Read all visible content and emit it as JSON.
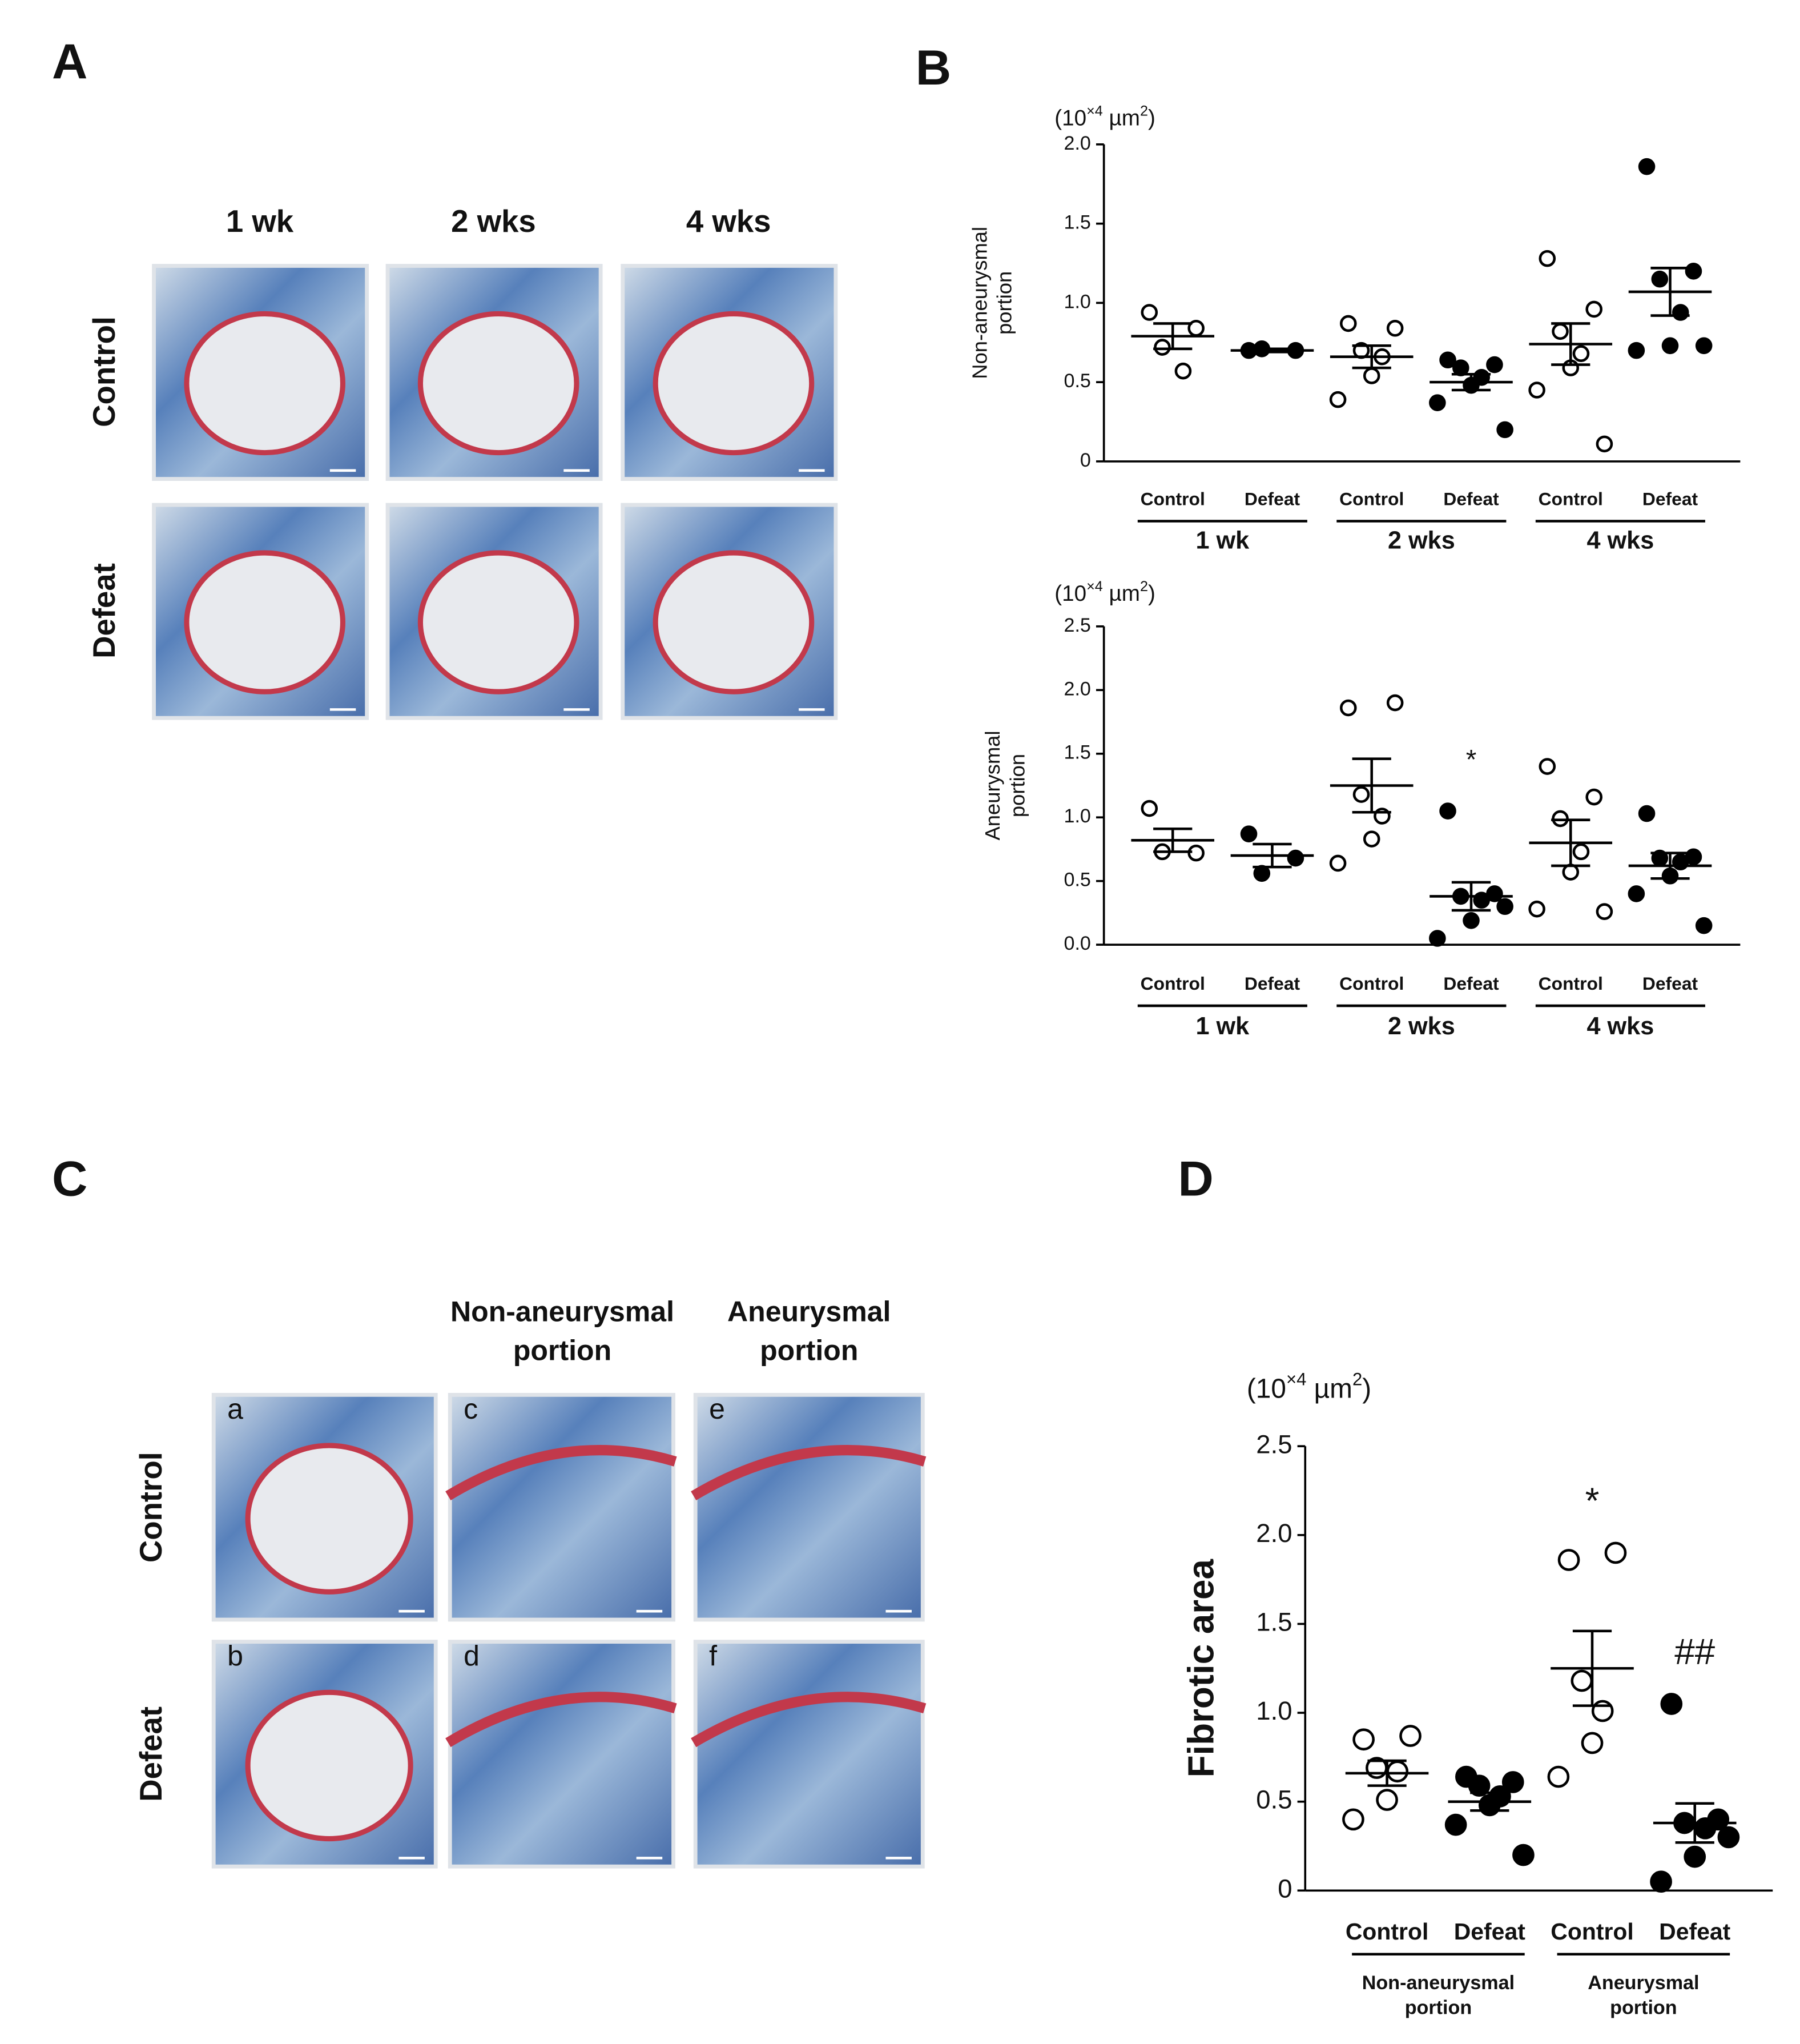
{
  "panels": {
    "A": {
      "label": "A",
      "columns": [
        "1 wk",
        "2 wks",
        "4 wks"
      ],
      "rows": [
        "Control",
        "Defeat"
      ]
    },
    "B": {
      "label": "B"
    },
    "C": {
      "label": "C",
      "columns": [
        [
          "Non-aneurysmal",
          "portion"
        ],
        [
          "Aneurysmal",
          "portion"
        ]
      ],
      "rows": [
        "Control",
        "Defeat"
      ],
      "letters": [
        "a",
        "b",
        "c",
        "d",
        "e",
        "f"
      ]
    },
    "D": {
      "label": "D"
    }
  },
  "chart_data": [
    {
      "type": "dotplot",
      "ylabel": [
        "Non-aneurysmal",
        "portion"
      ],
      "unit": [
        "(10",
        "×4",
        " µm",
        "2",
        ")"
      ],
      "categories": [
        "Control",
        "Defeat",
        "Control",
        "Defeat",
        "Control",
        "Defeat"
      ],
      "groups": [
        "1 wk",
        "2 wks",
        "4 wks"
      ],
      "markers": [
        "open",
        "filled",
        "open",
        "filled",
        "open",
        "filled"
      ],
      "values": [
        [
          0.94,
          0.84,
          0.72,
          0.57
        ],
        [
          0.7,
          0.7,
          0.71
        ],
        [
          0.87,
          0.84,
          0.7,
          0.66,
          0.54,
          0.39
        ],
        [
          0.64,
          0.61,
          0.59,
          0.53,
          0.48,
          0.37,
          0.2
        ],
        [
          1.28,
          0.96,
          0.82,
          0.68,
          0.59,
          0.45,
          0.11
        ],
        [
          1.86,
          1.2,
          1.15,
          0.94,
          0.73,
          0.7,
          0.73
        ]
      ],
      "mean": [
        0.79,
        0.7,
        0.66,
        0.5,
        0.74,
        1.07
      ],
      "sem": [
        0.08,
        0.01,
        0.07,
        0.05,
        0.13,
        0.15
      ],
      "annotations": [
        null,
        null,
        null,
        null,
        null,
        null
      ],
      "ylim": [
        0,
        2
      ],
      "yticks": [
        0,
        0.5,
        {
          "value": 1,
          "label": "1.0"
        },
        1.5,
        {
          "value": 2,
          "label": "2.0"
        }
      ]
    },
    {
      "type": "dotplot",
      "ylabel": [
        "Aneurysmal",
        "portion"
      ],
      "unit": [
        "(10",
        "×4",
        " µm",
        "2",
        ")"
      ],
      "categories": [
        "Control",
        "Defeat",
        "Control",
        "Defeat",
        "Control",
        "Defeat"
      ],
      "groups": [
        "1 wk",
        "2 wks",
        "4 wks"
      ],
      "markers": [
        "open",
        "filled",
        "open",
        "filled",
        "open",
        "filled"
      ],
      "values": [
        [
          1.07,
          0.72,
          0.73
        ],
        [
          0.87,
          0.68,
          0.56
        ],
        [
          1.86,
          1.9,
          1.18,
          1.01,
          0.83,
          0.64
        ],
        [
          1.05,
          0.4,
          0.38,
          0.35,
          0.19,
          0.05,
          0.3
        ],
        [
          1.4,
          1.16,
          0.99,
          0.73,
          0.57,
          0.28,
          0.26
        ],
        [
          1.03,
          0.69,
          0.68,
          0.65,
          0.54,
          0.4,
          0.15
        ]
      ],
      "mean": [
        0.82,
        0.7,
        1.25,
        0.38,
        0.8,
        0.62
      ],
      "sem": [
        0.09,
        0.09,
        0.21,
        0.11,
        0.18,
        0.1
      ],
      "annotations": [
        null,
        null,
        null,
        "*",
        null,
        null
      ],
      "ylim": [
        0,
        2.5
      ],
      "yticks": [
        {
          "value": 0,
          "label": "0.0"
        },
        0.5,
        {
          "value": 1,
          "label": "1.0"
        },
        1.5,
        {
          "value": 2,
          "label": "2.0"
        },
        2.5
      ]
    },
    {
      "type": "dotplot",
      "ylabel": [
        "Fibrotic area"
      ],
      "unit": [
        "(10",
        "×4",
        " µm",
        "2",
        ")"
      ],
      "categories": [
        "Control",
        "Defeat",
        "Control",
        "Defeat"
      ],
      "groups": [
        [
          "Non-aneurysmal",
          "portion"
        ],
        [
          "Aneurysmal",
          "portion"
        ]
      ],
      "markers": [
        "open",
        "filled",
        "open",
        "filled"
      ],
      "values": [
        [
          0.85,
          0.87,
          0.69,
          0.67,
          0.51,
          0.4
        ],
        [
          0.64,
          0.61,
          0.59,
          0.53,
          0.48,
          0.37,
          0.2
        ],
        [
          1.86,
          1.9,
          1.18,
          1.01,
          0.83,
          0.64
        ],
        [
          1.05,
          0.4,
          0.38,
          0.35,
          0.19,
          0.05,
          0.3
        ]
      ],
      "mean": [
        0.66,
        0.5,
        1.25,
        0.38
      ],
      "sem": [
        0.07,
        0.05,
        0.21,
        0.11
      ],
      "annotations": [
        null,
        null,
        "*",
        "##"
      ],
      "ylim": [
        0,
        2.5
      ],
      "yticks": [
        0,
        0.5,
        {
          "value": 1,
          "label": "1.0"
        },
        1.5,
        {
          "value": 2,
          "label": "2.0"
        },
        2.5
      ]
    }
  ]
}
